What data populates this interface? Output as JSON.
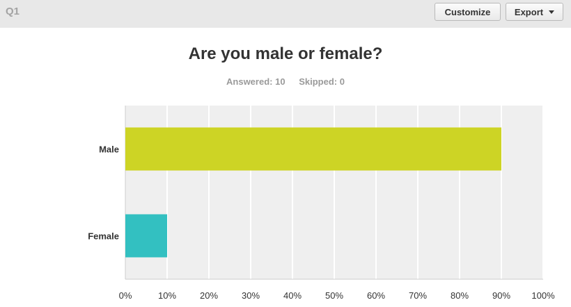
{
  "header": {
    "question_label": "Q1",
    "customize_label": "Customize",
    "export_label": "Export"
  },
  "summary": {
    "answered_label": "Answered:",
    "answered_value": "10",
    "skipped_label": "Skipped:",
    "skipped_value": "0"
  },
  "chart_data": {
    "type": "bar",
    "orientation": "horizontal",
    "title": "Are you male or female?",
    "categories": [
      "Male",
      "Female"
    ],
    "values": [
      90,
      10
    ],
    "colors": [
      "#cdd425",
      "#33c0c1"
    ],
    "xlim": [
      0,
      100
    ],
    "x_ticks": [
      "0%",
      "10%",
      "20%",
      "30%",
      "40%",
      "50%",
      "60%",
      "70%",
      "80%",
      "90%",
      "100%"
    ],
    "grid": true,
    "background": "#efefef"
  }
}
